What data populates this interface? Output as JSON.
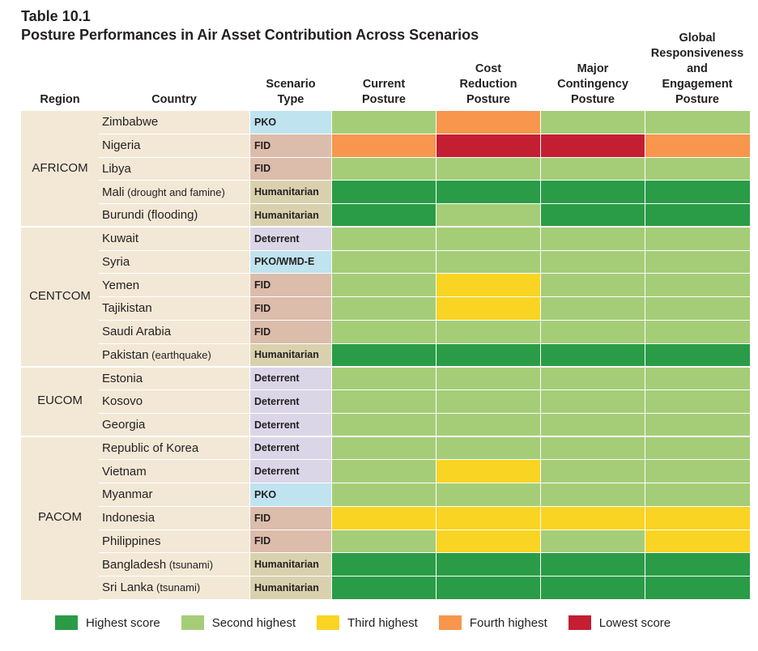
{
  "title": {
    "number": "Table 10.1",
    "text": "Posture Performances in Air Asset Contribution Across Scenarios"
  },
  "headers": {
    "region": "Region",
    "country": "Country",
    "scenario_type": "Scenario\nType",
    "current": "Current\nPosture",
    "cost": "Cost\nReduction\nPosture",
    "major": "Major\nContingency\nPosture",
    "global": "Global\nResponsiveness\nand\nEngagement\nPosture"
  },
  "colors": {
    "highest": "#2a9c47",
    "second": "#a5cd78",
    "third": "#f9d423",
    "fourth": "#f7964c",
    "lowest": "#c41e32",
    "PKO": "#bfe3ef",
    "FID": "#dcbcaa",
    "Humanitarian": "#d9d1ae",
    "Deterrent": "#dbd6e7",
    "PKO/WMD-E": "#bfe3ef"
  },
  "regions": [
    {
      "name": "AFRICOM",
      "start": 0,
      "count": 5
    },
    {
      "name": "CENTCOM",
      "start": 5,
      "count": 6
    },
    {
      "name": "EUCOM",
      "start": 11,
      "count": 3
    },
    {
      "name": "PACOM",
      "start": 14,
      "count": 7
    }
  ],
  "rows": [
    {
      "country": "Zimbabwe",
      "note": "",
      "type": "PKO",
      "scores": [
        "second",
        "fourth",
        "second",
        "second"
      ]
    },
    {
      "country": "Nigeria",
      "note": "",
      "type": "FID",
      "scores": [
        "fourth",
        "lowest",
        "lowest",
        "fourth"
      ]
    },
    {
      "country": "Libya",
      "note": "",
      "type": "FID",
      "scores": [
        "second",
        "second",
        "second",
        "second"
      ]
    },
    {
      "country": "Mali",
      "note": "(drought and famine)",
      "type": "Humanitarian",
      "scores": [
        "highest",
        "highest",
        "highest",
        "highest"
      ]
    },
    {
      "country": "Burundi (flooding)",
      "note": "",
      "type": "Humanitarian",
      "scores": [
        "highest",
        "second",
        "highest",
        "highest"
      ]
    },
    {
      "country": "Kuwait",
      "note": "",
      "type": "Deterrent",
      "scores": [
        "second",
        "second",
        "second",
        "second"
      ]
    },
    {
      "country": "Syria",
      "note": "",
      "type": "PKO/WMD-E",
      "scores": [
        "second",
        "second",
        "second",
        "second"
      ]
    },
    {
      "country": "Yemen",
      "note": "",
      "type": "FID",
      "scores": [
        "second",
        "third",
        "second",
        "second"
      ]
    },
    {
      "country": "Tajikistan",
      "note": "",
      "type": "FID",
      "scores": [
        "second",
        "third",
        "second",
        "second"
      ]
    },
    {
      "country": "Saudi Arabia",
      "note": "",
      "type": "FID",
      "scores": [
        "second",
        "second",
        "second",
        "second"
      ]
    },
    {
      "country": "Pakistan",
      "note": "(earthquake)",
      "type": "Humanitarian",
      "scores": [
        "highest",
        "highest",
        "highest",
        "highest"
      ]
    },
    {
      "country": "Estonia",
      "note": "",
      "type": "Deterrent",
      "scores": [
        "second",
        "second",
        "second",
        "second"
      ]
    },
    {
      "country": "Kosovo",
      "note": "",
      "type": "Deterrent",
      "scores": [
        "second",
        "second",
        "second",
        "second"
      ]
    },
    {
      "country": "Georgia",
      "note": "",
      "type": "Deterrent",
      "scores": [
        "second",
        "second",
        "second",
        "second"
      ]
    },
    {
      "country": "Republic of Korea",
      "note": "",
      "type": "Deterrent",
      "scores": [
        "second",
        "second",
        "second",
        "second"
      ]
    },
    {
      "country": "Vietnam",
      "note": "",
      "type": "Deterrent",
      "scores": [
        "second",
        "third",
        "second",
        "second"
      ]
    },
    {
      "country": "Myanmar",
      "note": "",
      "type": "PKO",
      "scores": [
        "second",
        "second",
        "second",
        "second"
      ]
    },
    {
      "country": "Indonesia",
      "note": "",
      "type": "FID",
      "scores": [
        "third",
        "third",
        "third",
        "third"
      ]
    },
    {
      "country": "Philippines",
      "note": "",
      "type": "FID",
      "scores": [
        "second",
        "third",
        "second",
        "third"
      ]
    },
    {
      "country": "Bangladesh",
      "note": "(tsunami)",
      "type": "Humanitarian",
      "scores": [
        "highest",
        "highest",
        "highest",
        "highest"
      ]
    },
    {
      "country": "Sri Lanka",
      "note": "(tsunami)",
      "type": "Humanitarian",
      "scores": [
        "highest",
        "highest",
        "highest",
        "highest"
      ]
    }
  ],
  "legend": [
    {
      "key": "highest",
      "label": "Highest score"
    },
    {
      "key": "second",
      "label": "Second highest"
    },
    {
      "key": "third",
      "label": "Third highest"
    },
    {
      "key": "fourth",
      "label": "Fourth highest"
    },
    {
      "key": "lowest",
      "label": "Lowest score"
    }
  ]
}
